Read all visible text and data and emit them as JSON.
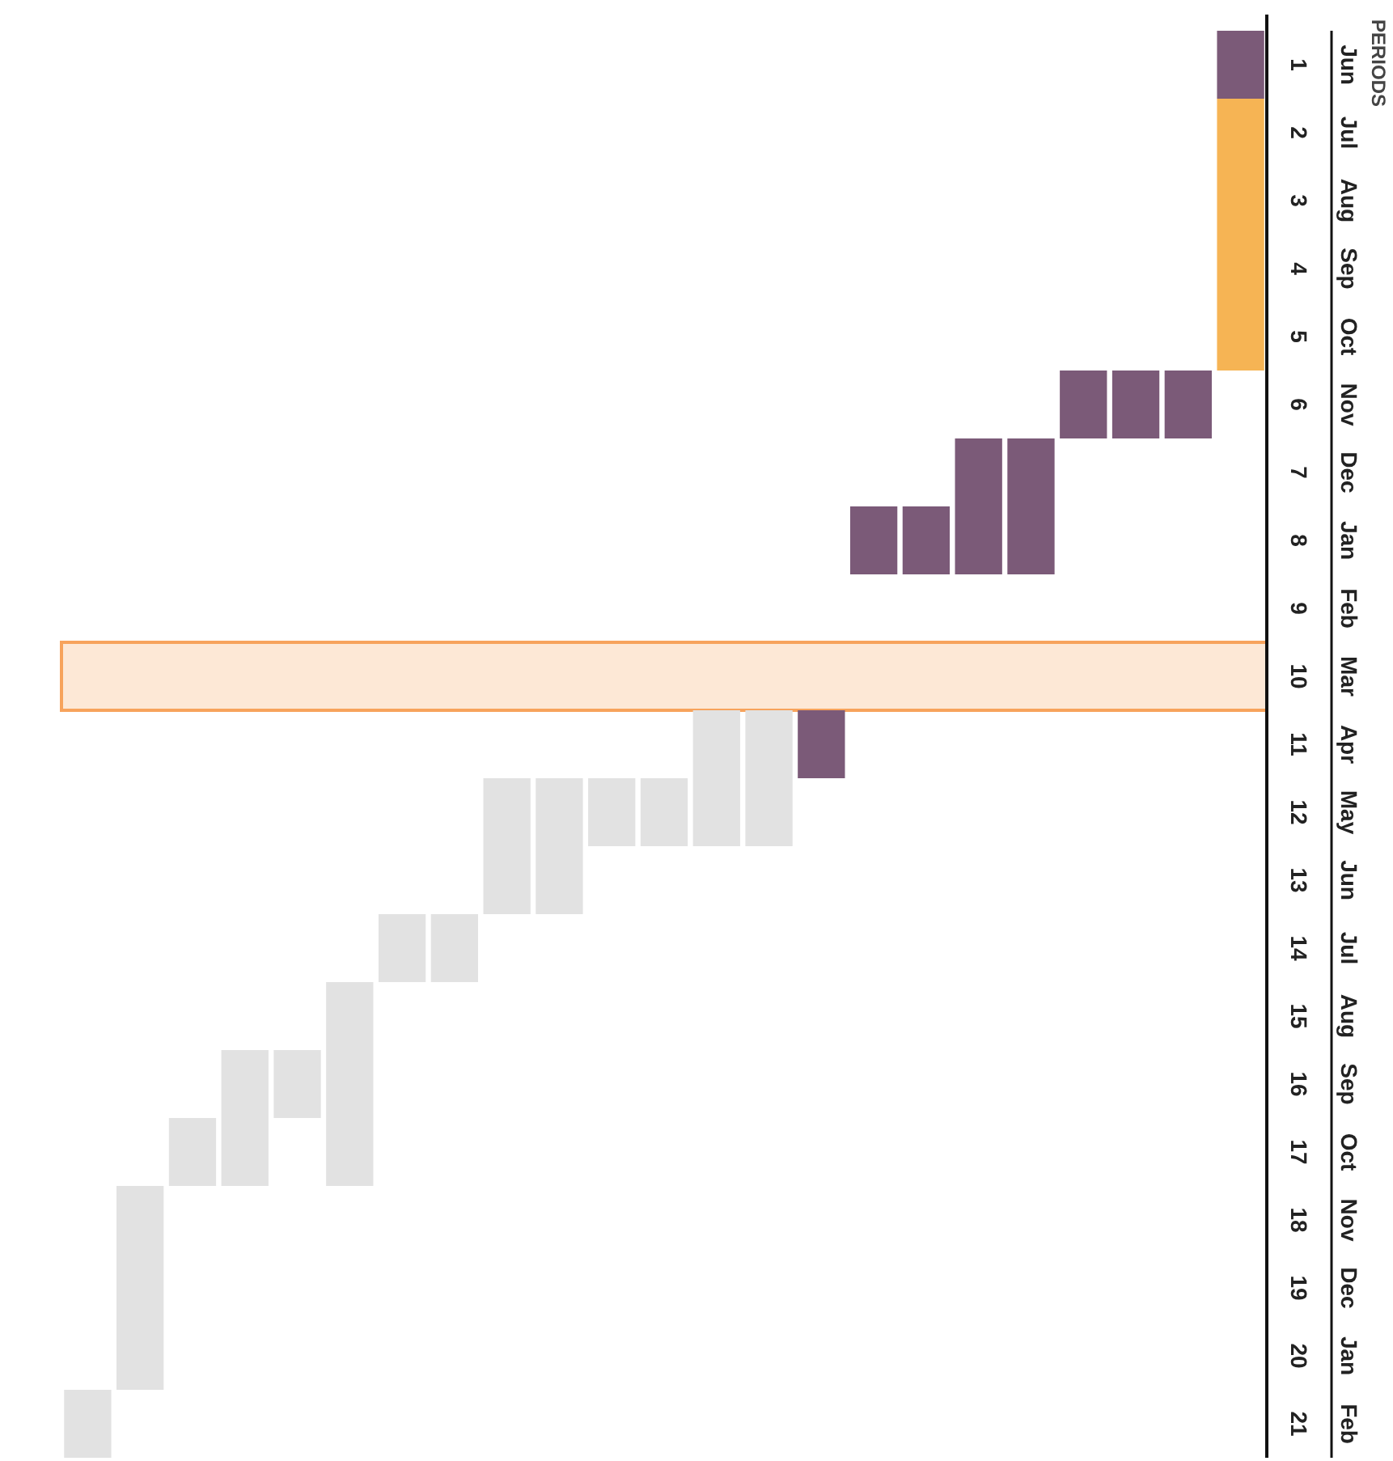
{
  "chart_data": {
    "type": "bar",
    "ylabel": "PERIODS",
    "stacked": true,
    "categories": [
      null,
      null,
      null,
      null,
      null,
      null,
      null,
      null,
      null,
      null,
      null,
      null,
      null,
      null,
      null,
      null,
      null,
      null,
      null,
      null,
      null,
      null,
      null
    ],
    "series": [
      {
        "base": [
          20.5,
          17.5,
          16.5,
          15.5,
          15.5,
          14.5,
          13.5,
          13.5,
          11.5,
          11.5,
          11.5,
          11.5,
          10.5,
          10.5,
          10.5,
          7.5,
          7.5,
          6.5,
          6.5,
          5.5,
          5.5,
          5.5,
          0.5
        ],
        "values": [
          1,
          3,
          1,
          2,
          1,
          3,
          1,
          1,
          2,
          2,
          1,
          1,
          2,
          2,
          1,
          1,
          1,
          2,
          2,
          1,
          1,
          1,
          1
        ],
        "colors": [
          "#e2e2e2",
          "#e2e2e2",
          "#e2e2e2",
          "#e2e2e2",
          "#e2e2e2",
          "#e2e2e2",
          "#e2e2e2",
          "#e2e2e2",
          "#e2e2e2",
          "#e2e2e2",
          "#e2e2e2",
          "#e2e2e2",
          "#e2e2e2",
          "#e2e2e2",
          "#7b5a78",
          "#7b5a78",
          "#7b5a78",
          "#7b5a78",
          "#7b5a78",
          "#7b5a78",
          "#7b5a78",
          "#7b5a78",
          "#7b5a78"
        ]
      },
      {
        "color": "#f6b454",
        "values": [
          null,
          null,
          null,
          null,
          null,
          null,
          null,
          null,
          null,
          null,
          null,
          null,
          null,
          null,
          null,
          null,
          null,
          null,
          null,
          null,
          null,
          null,
          4
        ]
      }
    ],
    "ylim": [
      21.5,
      0.5
    ],
    "yticks": [
      1,
      2,
      3,
      4,
      5,
      6,
      7,
      8,
      9,
      10,
      11,
      12,
      13,
      14,
      15,
      16,
      17,
      18,
      19,
      20,
      21
    ],
    "y2_categories": [
      "Jun",
      "Jul",
      "Aug",
      "Sep",
      "Oct",
      "Nov",
      "Dec",
      "Jan",
      "Feb",
      "Mar",
      "Apr",
      "May",
      "Jun",
      "Jul",
      "Aug",
      "Sep",
      "Oct",
      "Nov",
      "Dec",
      "Jan",
      "Feb"
    ],
    "bands": [
      {
        "axis": "y",
        "from": 9.5,
        "to": 10.5,
        "color": "#f7a35c"
      }
    ]
  }
}
